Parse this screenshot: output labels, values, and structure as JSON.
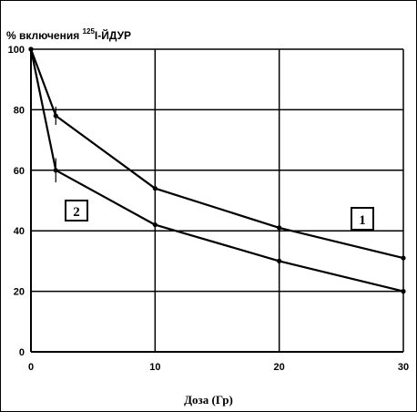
{
  "chart_data": {
    "type": "line",
    "ylabel": {
      "prefix": "% включения ",
      "sup": "125",
      "suffix": "I-ЙДУР"
    },
    "xlabel": "Доза (Гр)",
    "xlim": [
      0,
      30
    ],
    "ylim": [
      0,
      100
    ],
    "xticks": [
      "0",
      "10",
      "20",
      "30"
    ],
    "yticks": [
      "0",
      "20",
      "40",
      "60",
      "80",
      "100"
    ],
    "grid": true,
    "series": [
      {
        "name": "1",
        "x": [
          0,
          2,
          10,
          20,
          30
        ],
        "y": [
          100,
          78,
          54,
          41,
          31
        ],
        "errors": [
          0,
          3,
          0,
          5,
          0
        ]
      },
      {
        "name": "2",
        "x": [
          0,
          2,
          10,
          20,
          30
        ],
        "y": [
          100,
          60,
          42,
          30,
          20
        ],
        "errors": [
          0,
          4,
          0,
          4,
          0
        ]
      }
    ]
  }
}
